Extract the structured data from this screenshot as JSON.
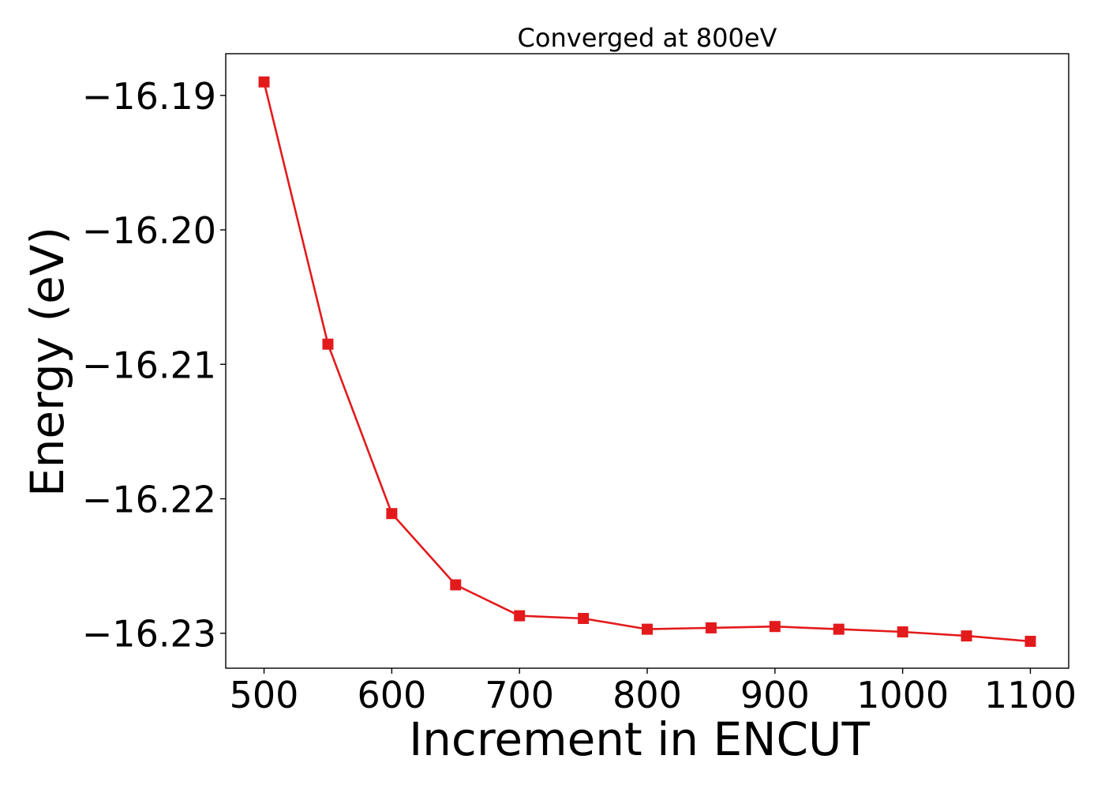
{
  "chart_data": {
    "type": "line",
    "title": "Converged at 800eV",
    "xlabel": "Increment in ENCUT",
    "ylabel": "Energy (eV)",
    "xlim": [
      470,
      1130
    ],
    "ylim": [
      -16.2326,
      -16.1869
    ],
    "x_ticks": [
      500,
      600,
      700,
      800,
      900,
      1000,
      1100
    ],
    "x_tick_labels": [
      "500",
      "600",
      "700",
      "800",
      "900",
      "1000",
      "1100"
    ],
    "y_ticks": [
      -16.19,
      -16.2,
      -16.21,
      -16.22,
      -16.23
    ],
    "y_tick_labels": [
      "−16.19",
      "−16.20",
      "−16.21",
      "−16.22",
      "−16.23"
    ],
    "grid": false,
    "series": [
      {
        "color": "#e31a1c",
        "marker": "square",
        "x": [
          500,
          550,
          600,
          650,
          700,
          750,
          800,
          850,
          900,
          950,
          1000,
          1050,
          1100
        ],
        "y": [
          -16.189,
          -16.2085,
          -16.2211,
          -16.2264,
          -16.2287,
          -16.2289,
          -16.2297,
          -16.2296,
          -16.2295,
          -16.2297,
          -16.2299,
          -16.2302,
          -16.2306
        ]
      }
    ]
  }
}
